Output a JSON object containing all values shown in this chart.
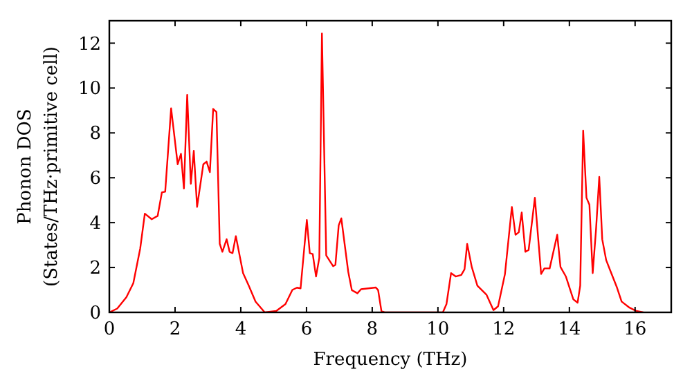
{
  "chart_data": {
    "type": "line",
    "xlabel": "Frequency (THz)",
    "ylabel": "Phonon DOS\n(States/THz·primitive cell)",
    "xlim": [
      0,
      17.1
    ],
    "ylim": [
      0,
      13
    ],
    "xticks": [
      0,
      2,
      4,
      6,
      8,
      10,
      12,
      14,
      16
    ],
    "yticks": [
      0,
      2,
      4,
      6,
      8,
      10,
      12
    ],
    "grid": false,
    "marker": "none",
    "line_style": "solid",
    "series": [
      {
        "color": "#ff0000",
        "x": [
          0,
          0.24,
          0.52,
          0.73,
          0.94,
          1.08,
          1.29,
          1.47,
          1.6,
          1.7,
          1.88,
          2.08,
          2.18,
          2.27,
          2.37,
          2.48,
          2.57,
          2.67,
          2.86,
          2.96,
          3.06,
          3.16,
          3.26,
          3.36,
          3.44,
          3.57,
          3.66,
          3.75,
          3.85,
          4.07,
          4.24,
          4.45,
          4.73,
          5.08,
          5.36,
          5.57,
          5.71,
          5.82,
          6.01,
          6.1,
          6.19,
          6.29,
          6.39,
          6.47,
          6.6,
          6.81,
          6.88,
          6.98,
          7.06,
          7.27,
          7.38,
          7.55,
          7.66,
          8.11,
          8.18,
          8.28,
          8.39,
          10.15,
          10.26,
          10.4,
          10.54,
          10.71,
          10.81,
          10.89,
          11.03,
          11.2,
          11.48,
          11.69,
          11.83,
          12.04,
          12.25,
          12.36,
          12.46,
          12.55,
          12.66,
          12.76,
          12.95,
          13.14,
          13.24,
          13.4,
          13.63,
          13.73,
          13.89,
          14.12,
          14.25,
          14.33,
          14.42,
          14.52,
          14.61,
          14.71,
          14.81,
          14.91,
          15.0,
          15.12,
          15.24,
          15.45,
          15.59,
          15.83,
          16.04,
          16.25
        ],
        "values": [
          0,
          0.17,
          0.68,
          1.3,
          2.85,
          4.4,
          4.15,
          4.3,
          5.35,
          5.38,
          9.1,
          6.6,
          7.07,
          5.52,
          9.7,
          5.73,
          7.2,
          4.7,
          6.6,
          6.72,
          6.25,
          9.07,
          8.93,
          3.05,
          2.7,
          3.26,
          2.7,
          2.64,
          3.4,
          1.75,
          1.2,
          0.48,
          0,
          0.06,
          0.37,
          1.0,
          1.1,
          1.07,
          4.12,
          2.64,
          2.6,
          1.6,
          2.43,
          12.43,
          2.54,
          2.06,
          2.12,
          3.88,
          4.19,
          1.81,
          0.99,
          0.85,
          1.03,
          1.11,
          0.99,
          0.06,
          0,
          0,
          0.37,
          1.75,
          1.6,
          1.67,
          1.92,
          3.05,
          2.02,
          1.19,
          0.78,
          0.1,
          0.27,
          1.71,
          4.7,
          3.46,
          3.57,
          4.45,
          2.7,
          2.78,
          5.11,
          1.71,
          1.96,
          1.96,
          3.46,
          2.02,
          1.61,
          0.58,
          0.43,
          1.19,
          8.1,
          5.11,
          4.8,
          1.75,
          3.67,
          6.04,
          3.26,
          2.33,
          1.88,
          1.1,
          0.48,
          0.21,
          0.06,
          0
        ]
      }
    ]
  }
}
